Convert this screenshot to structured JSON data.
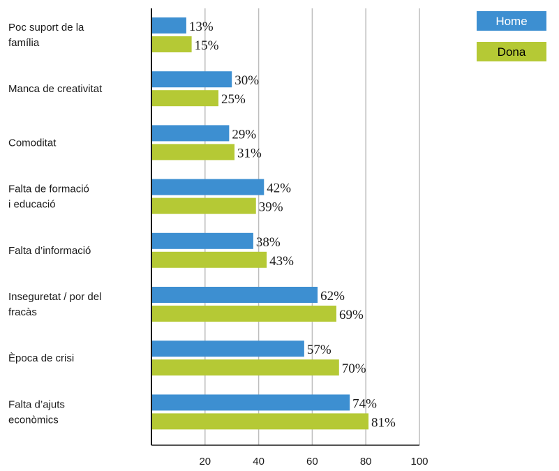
{
  "chart_data": {
    "type": "bar",
    "orientation": "horizontal",
    "categories": [
      [
        "Poc suport de la",
        "família"
      ],
      [
        "Manca de creativitat"
      ],
      [
        "Comoditat"
      ],
      [
        "Falta de formació",
        "i educació"
      ],
      [
        "Falta d’informació"
      ],
      [
        "Inseguretat / por del",
        "fracàs"
      ],
      [
        "Època de crisi"
      ],
      [
        "Falta d’ajuts",
        "econòmics"
      ]
    ],
    "series": [
      {
        "name": "Home",
        "color": "#3d8fd1",
        "values": [
          13,
          30,
          29,
          42,
          38,
          62,
          57,
          74
        ]
      },
      {
        "name": "Dona",
        "color": "#b5c935",
        "values": [
          15,
          25,
          31,
          39,
          43,
          69,
          70,
          81
        ]
      }
    ],
    "value_suffix": "%",
    "xlim": [
      0,
      100
    ],
    "xticks": [
      20,
      40,
      60,
      80,
      100
    ],
    "grid": "vertical",
    "legend": "top-right",
    "legend_text_color": "#000000"
  }
}
